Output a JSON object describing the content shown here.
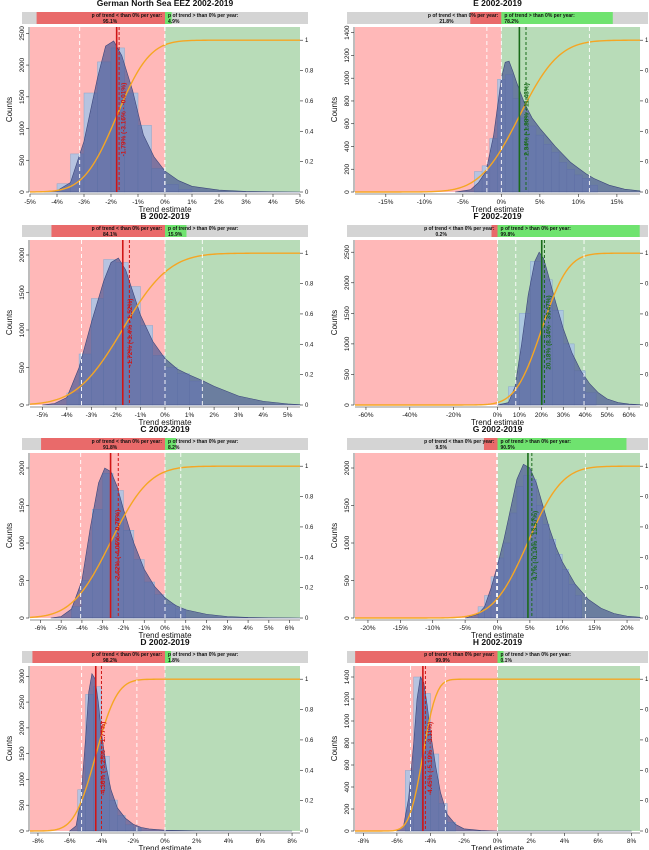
{
  "figure": {
    "xlabel": "Trend estimate",
    "ylabel": "Counts",
    "colors": {
      "neg_region": "#ffb8b8",
      "pos_region": "#b8dcb8",
      "neg_box": "#e96a6a",
      "pos_box": "#6fe36f",
      "gray_box": "#d4d4d4",
      "density": "#4e5a96",
      "hist": "#a9c4e6",
      "cdf": "#f5a623",
      "median_neg": "#d11515",
      "median_pos": "#1a6b1a"
    }
  },
  "chart_data": [
    {
      "id": "A",
      "type": "bar",
      "title": "German North Sea EEZ 2002-2019",
      "label_neg": "p of trend < than 0% per year:",
      "pct_neg": "95.1%",
      "label_pos": "p of trend > than 0% per year:",
      "pct_pos": "4.9%",
      "p_neg": 0.951,
      "xlim": [
        -5,
        5
      ],
      "xticks": [
        -5,
        -4,
        -3,
        -2,
        -1,
        0,
        1,
        2,
        3,
        4,
        5
      ],
      "ylim": [
        0,
        2600
      ],
      "yticks": [
        0,
        500,
        1000,
        1500,
        2000,
        2500
      ],
      "right_ticks": [
        0,
        0.2,
        0.4,
        0.6,
        0.8,
        1
      ],
      "median": -1.79,
      "ci": [
        -3.16,
        -0.01
      ],
      "ci_lines": [
        -3.16,
        -1.7,
        -0.01
      ],
      "annotation": "-1.79% (-3.16% - -0.01%)",
      "hist_x": [
        -3.75,
        -3.25,
        -2.75,
        -2.25,
        -1.75,
        -1.25,
        -0.75,
        -0.25,
        0.25,
        0.75
      ],
      "hist_y": [
        130,
        600,
        1560,
        2050,
        2270,
        1560,
        1050,
        370,
        120,
        40
      ],
      "density_x": [
        -4.5,
        -4,
        -3.5,
        -3,
        -2.5,
        -2.2,
        -1.9,
        -1.6,
        -1.2,
        -0.8,
        -0.4,
        0,
        0.5,
        1,
        2,
        3,
        4,
        5
      ],
      "density_y": [
        0,
        20,
        150,
        800,
        1800,
        2300,
        2380,
        2150,
        1600,
        900,
        550,
        330,
        180,
        90,
        30,
        10,
        3,
        0
      ]
    },
    {
      "id": "E",
      "type": "bar",
      "title": "E 2002-2019",
      "label_neg": "p of trend < than 0% per year:",
      "pct_neg": "21.8%",
      "label_pos": "p of trend > than 0% per year:",
      "pct_pos": "78.2%",
      "p_neg": 0.218,
      "xlim": [
        -19,
        18
      ],
      "xticks": [
        -15,
        -10,
        -5,
        0,
        5,
        10,
        15
      ],
      "ylim": [
        0,
        1450
      ],
      "yticks": [
        0,
        200,
        400,
        600,
        800,
        1000,
        1200,
        1400
      ],
      "right_ticks": [
        0,
        0.2,
        0.4,
        0.6,
        0.8,
        1
      ],
      "median": 2.34,
      "ci": [
        -1.88,
        11.43
      ],
      "ci_lines": [
        -1.88,
        3.2,
        11.43
      ],
      "annotation": "2.34% (-1.88% - 11.43%)",
      "hist_x": [
        -3,
        -2,
        -1,
        0,
        1,
        2,
        3,
        4,
        5,
        6,
        7,
        8,
        9,
        10,
        11,
        12
      ],
      "hist_y": [
        180,
        230,
        470,
        990,
        1030,
        820,
        650,
        580,
        500,
        420,
        350,
        260,
        200,
        150,
        120,
        60
      ],
      "density_x": [
        -6,
        -4,
        -3,
        -2,
        -1,
        0,
        0.5,
        1,
        1.5,
        2,
        3,
        4,
        5,
        6,
        7,
        8,
        9,
        10,
        11,
        12,
        14,
        16,
        18
      ],
      "density_y": [
        0,
        20,
        80,
        180,
        500,
        1000,
        1140,
        1150,
        1060,
        960,
        780,
        650,
        560,
        480,
        400,
        330,
        260,
        210,
        160,
        120,
        60,
        25,
        10
      ]
    },
    {
      "id": "B",
      "type": "bar",
      "title": "B 2002-2019",
      "label_neg": "p of trend < than 0% per year:",
      "pct_neg": "84.1%",
      "label_pos": "p of trend > than 0% per year:",
      "pct_pos": "15.9%",
      "p_neg": 0.841,
      "xlim": [
        -5.5,
        5.5
      ],
      "xticks": [
        -5,
        -4,
        -3,
        -2,
        -1,
        0,
        1,
        2,
        3,
        4,
        5
      ],
      "ylim": [
        0,
        2200
      ],
      "yticks": [
        0,
        500,
        1000,
        1500,
        2000
      ],
      "right_ticks": [
        0,
        0.2,
        0.4,
        0.6,
        0.8,
        1
      ],
      "median": -1.72,
      "ci": [
        -3.4,
        1.52
      ],
      "ci_lines": [
        -3.4,
        -1.45,
        1.52
      ],
      "annotation": "-1.72% (-3.4% - 1.52%)",
      "hist_x": [
        -3.75,
        -3.25,
        -2.75,
        -2.25,
        -1.75,
        -1.25,
        -0.75,
        -0.25,
        0.25,
        0.75,
        1.25
      ],
      "hist_y": [
        160,
        680,
        1420,
        1940,
        1900,
        1580,
        1060,
        660,
        500,
        420,
        320
      ],
      "density_x": [
        -5,
        -4.5,
        -4,
        -3.5,
        -3,
        -2.5,
        -2.2,
        -1.9,
        -1.6,
        -1.3,
        -1,
        -0.5,
        0,
        0.5,
        1,
        1.5,
        2,
        3,
        4,
        5,
        5.5
      ],
      "density_y": [
        0,
        20,
        100,
        500,
        1100,
        1650,
        1900,
        1960,
        1800,
        1500,
        1200,
        850,
        620,
        480,
        400,
        330,
        250,
        120,
        50,
        15,
        5
      ]
    },
    {
      "id": "F",
      "type": "bar",
      "title": "F 2002-2019",
      "label_neg": "p of trend < than 0% per year:",
      "pct_neg": "0.2%",
      "label_pos": "p of trend > than 0% per year:",
      "pct_pos": "99.8%",
      "p_neg": 0.002,
      "xlim": [
        -65,
        65
      ],
      "xticks": [
        -60,
        -40,
        -20,
        0,
        10,
        20,
        30,
        40,
        50,
        60
      ],
      "ylim": [
        0,
        2700
      ],
      "yticks": [
        0,
        500,
        1000,
        1500,
        2000,
        2500
      ],
      "right_ticks": [
        0,
        0.2,
        0.4,
        0.6,
        0.8,
        1
      ],
      "median": 20.18,
      "ci": [
        8.34,
        39.47
      ],
      "ci_lines": [
        8.34,
        21.4,
        39.47
      ],
      "annotation": "20.18% (8.34% - 39.47%)",
      "hist_x": [
        2.5,
        7.5,
        12.5,
        17.5,
        22.5,
        27.5,
        32.5,
        37.5,
        42.5
      ],
      "hist_y": [
        20,
        300,
        1500,
        2350,
        2050,
        1550,
        1000,
        560,
        200
      ],
      "density_x": [
        0,
        5,
        8,
        11,
        14,
        17,
        19,
        21,
        23,
        26,
        30,
        34,
        38,
        42,
        46,
        50,
        55,
        60,
        65
      ],
      "density_y": [
        0,
        40,
        300,
        1000,
        1800,
        2350,
        2500,
        2400,
        2150,
        1750,
        1250,
        850,
        560,
        350,
        200,
        100,
        40,
        15,
        5
      ]
    },
    {
      "id": "C",
      "type": "bar",
      "title": "C 2002-2019",
      "label_neg": "p of trend < than 0% per year:",
      "pct_neg": "91.8%",
      "label_pos": "p of trend > than 0% per year:",
      "pct_pos": "8.2%",
      "p_neg": 0.918,
      "xlim": [
        -6.5,
        6.5
      ],
      "xticks": [
        -6,
        -5,
        -4,
        -3,
        -2,
        -1,
        0,
        1,
        2,
        3,
        4,
        5,
        6
      ],
      "ylim": [
        0,
        2200
      ],
      "yticks": [
        0,
        500,
        1000,
        1500,
        2000
      ],
      "right_ticks": [
        0,
        0.2,
        0.4,
        0.6,
        0.8,
        1
      ],
      "median": -2.62,
      "ci": [
        -4.06,
        0.76
      ],
      "ci_lines": [
        -4.06,
        -2.25,
        0.76
      ],
      "annotation": "-2.62% (-4.06% - 0.76%)",
      "hist_x": [
        -4.25,
        -3.75,
        -3.25,
        -2.75,
        -2.25,
        -1.75,
        -1.25,
        -0.75,
        -0.25,
        0.25,
        0.75
      ],
      "hist_y": [
        150,
        500,
        1450,
        1930,
        1700,
        1170,
        780,
        480,
        310,
        180,
        120
      ],
      "density_x": [
        -5.5,
        -5,
        -4.5,
        -4,
        -3.6,
        -3.2,
        -2.9,
        -2.6,
        -2.3,
        -2,
        -1.5,
        -1,
        -0.5,
        0,
        0.5,
        1,
        2,
        3,
        4,
        5,
        6,
        6.5
      ],
      "density_y": [
        0,
        20,
        120,
        500,
        1200,
        1800,
        2000,
        1950,
        1750,
        1450,
        1000,
        650,
        420,
        270,
        170,
        110,
        50,
        20,
        8,
        3,
        1,
        0
      ]
    },
    {
      "id": "G",
      "type": "bar",
      "title": "G 2002-2019",
      "label_neg": "p of trend < than 0% per year:",
      "pct_neg": "9.5%",
      "label_pos": "p of trend > than 0% per year:",
      "pct_pos": "90.5%",
      "p_neg": 0.095,
      "xlim": [
        -22,
        22
      ],
      "xticks": [
        -20,
        -15,
        -10,
        -5,
        0,
        5,
        10,
        15,
        20
      ],
      "ylim": [
        0,
        2200
      ],
      "yticks": [
        0,
        500,
        1000,
        1500,
        2000
      ],
      "right_ticks": [
        0,
        0.2,
        0.4,
        0.6,
        0.8,
        1
      ],
      "median": 4.7,
      "ci": [
        -0.14,
        13.57
      ],
      "ci_lines": [
        -0.14,
        5.3,
        13.57
      ],
      "annotation": "4.7% (-0.14% - 13.57%)",
      "hist_x": [
        -2.5,
        -1.5,
        -0.5,
        0.5,
        1.5,
        2.5,
        3.5,
        4.5,
        5.5,
        6.5,
        7.5,
        8.5,
        9.5,
        10.5,
        11.5,
        12.5
      ],
      "hist_y": [
        150,
        300,
        550,
        800,
        1000,
        1400,
        1750,
        1900,
        1850,
        1500,
        1250,
        1050,
        850,
        650,
        450,
        300
      ],
      "density_x": [
        -5,
        -3,
        -2,
        -1,
        0,
        1,
        2,
        3,
        4,
        5,
        6,
        7,
        8,
        9,
        10,
        12,
        14,
        16,
        18,
        20,
        22
      ],
      "density_y": [
        0,
        50,
        150,
        400,
        700,
        1050,
        1450,
        1850,
        2050,
        2000,
        1800,
        1500,
        1200,
        950,
        750,
        450,
        250,
        130,
        60,
        25,
        10
      ]
    },
    {
      "id": "D",
      "type": "bar",
      "title": "D 2002-2019",
      "label_neg": "p of trend < than 0% per year:",
      "pct_neg": "98.2%",
      "label_pos": "p of trend > than 0% per year:",
      "pct_pos": "1.8%",
      "p_neg": 0.982,
      "xlim": [
        -8.5,
        8.5
      ],
      "xticks": [
        -8,
        -6,
        -4,
        -2,
        0,
        2,
        4,
        6,
        8
      ],
      "ylim": [
        0,
        3200
      ],
      "yticks": [
        0,
        500,
        1000,
        1500,
        2000,
        2500,
        3000
      ],
      "right_ticks": [
        0,
        0.2,
        0.4,
        0.6,
        0.8,
        1
      ],
      "median": -4.36,
      "ci": [
        -5.25,
        -1.77
      ],
      "ci_lines": [
        -5.25,
        -4.0,
        -1.77
      ],
      "annotation": "-4.36% (-5.25% - -1.77%)",
      "hist_x": [
        -5.25,
        -4.75,
        -4.25,
        -3.75,
        -3.25,
        -2.75,
        -2.25,
        -1.75
      ],
      "hist_y": [
        800,
        2650,
        2800,
        1450,
        600,
        300,
        120,
        60
      ],
      "density_x": [
        -6,
        -5.6,
        -5.3,
        -5,
        -4.8,
        -4.6,
        -4.4,
        -4.2,
        -4,
        -3.7,
        -3.4,
        -3,
        -2.5,
        -2,
        -1.5,
        -1,
        0,
        2,
        4,
        8
      ],
      "density_y": [
        0,
        100,
        600,
        1800,
        2700,
        3050,
        2950,
        2500,
        1900,
        1250,
        800,
        450,
        250,
        130,
        70,
        40,
        15,
        5,
        2,
        0
      ]
    },
    {
      "id": "H",
      "type": "bar",
      "title": "H 2002-2019",
      "label_neg": "p of trend < than 0% per year:",
      "pct_neg": "99.9%",
      "label_pos": "p of trend > than 0% per year:",
      "pct_pos": "0.1%",
      "p_neg": 0.999,
      "xlim": [
        -8.5,
        8.5
      ],
      "xticks": [
        -8,
        -6,
        -4,
        -2,
        0,
        2,
        4,
        6,
        8
      ],
      "ylim": [
        0,
        1500
      ],
      "yticks": [
        0,
        200,
        400,
        600,
        800,
        1000,
        1200,
        1400
      ],
      "right_ticks": [
        0,
        0.2,
        0.4,
        0.6,
        0.8,
        1
      ],
      "median": -4.45,
      "ci": [
        -5.19,
        -3.11
      ],
      "ci_lines": [
        -5.19,
        -4.3,
        -3.11
      ],
      "annotation": "-4.45% (-5.19% - -3.11%)",
      "hist_x": [
        -5.25,
        -4.75,
        -4.25,
        -3.75,
        -3.25,
        -2.75
      ],
      "hist_y": [
        550,
        1400,
        1250,
        700,
        250,
        80
      ],
      "density_x": [
        -6,
        -5.6,
        -5.3,
        -5,
        -4.8,
        -4.6,
        -4.4,
        -4.2,
        -4,
        -3.7,
        -3.4,
        -3,
        -2.5,
        -2,
        -1,
        0,
        8
      ],
      "density_y": [
        0,
        50,
        300,
        800,
        1200,
        1400,
        1350,
        1150,
        900,
        600,
        350,
        150,
        60,
        20,
        5,
        0,
        0
      ]
    }
  ]
}
